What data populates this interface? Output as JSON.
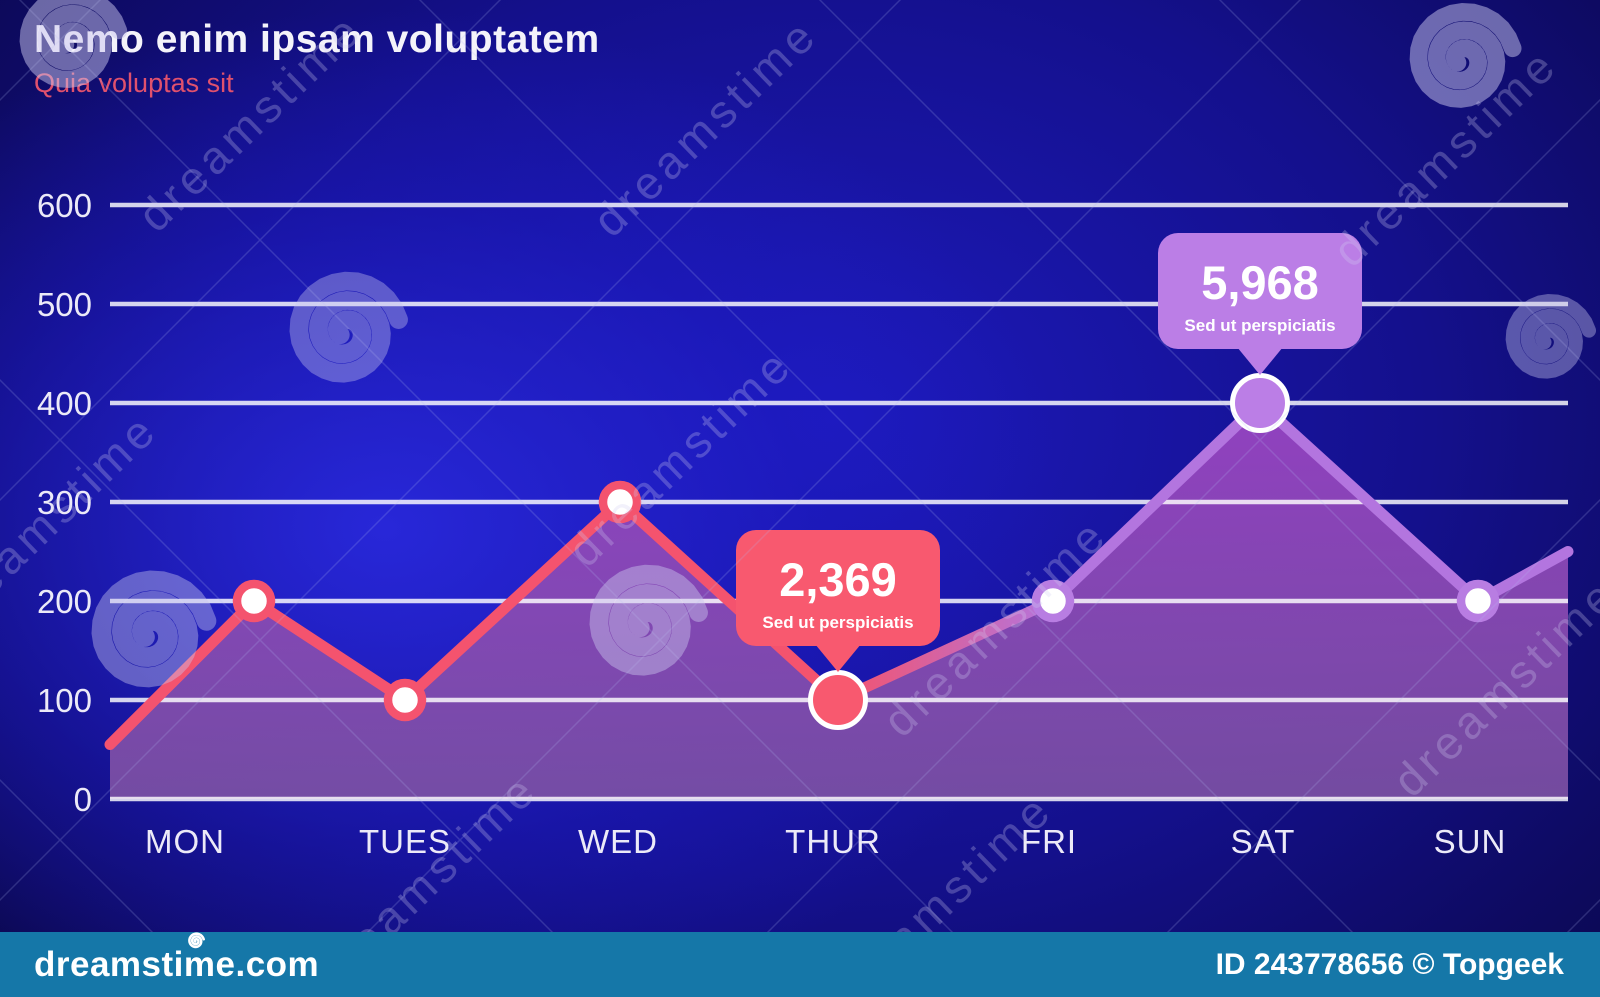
{
  "header": {
    "title": "Nemo enim ipsam voluptatem",
    "subtitle": "Quia voluptas sit",
    "subtitle_color": "#e0516d"
  },
  "footer": {
    "brand": "dreamstime.com",
    "credit": "ID 243778656 © Topgeek",
    "background": "#1577a8"
  },
  "watermark": {
    "text": "dreamstime"
  },
  "chart_data": {
    "type": "area",
    "title": "Nemo enim ipsam voluptatem",
    "subtitle": "Quia voluptas sit",
    "categories": [
      "MON",
      "TUES",
      "WED",
      "THUR",
      "FRI",
      "SAT",
      "SUN"
    ],
    "values": [
      200,
      100,
      300,
      100,
      200,
      400,
      200
    ],
    "left_edge_value": 55,
    "right_edge_value": 250,
    "yticks": [
      0,
      100,
      200,
      300,
      400,
      500,
      600
    ],
    "ylim": [
      0,
      600
    ],
    "grid": true,
    "legend": false,
    "annotations": [
      {
        "index": 3,
        "category": "THUR",
        "value_label": "2,369",
        "sublabel": "Sed ut perspiciatis",
        "color": "#f8596f"
      },
      {
        "index": 5,
        "category": "SAT",
        "value_label": "5,968",
        "sublabel": "Sed ut perspiciatis",
        "color": "#bb7ee6"
      }
    ],
    "style": {
      "line_color_left": "#f4536e",
      "line_color_right": "#b375df",
      "area_top": "#9843c2",
      "area_bottom": "#7e52a4",
      "point_ring_left": "#f4536e",
      "point_ring_right": "#b87de2",
      "point_fill": "#ffffff",
      "grid_color": "rgba(255,255,255,0.82)",
      "tick_color": "#eceaf8"
    }
  }
}
